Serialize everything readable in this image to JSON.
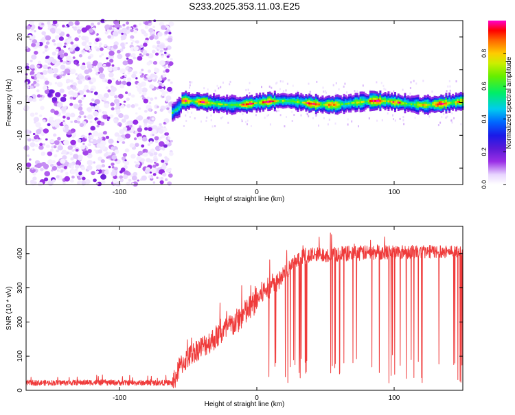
{
  "figure_title": "S233.2025.353.11.03.E25",
  "chart_data": [
    {
      "type": "heatmap",
      "title": "",
      "xlabel": "Height of straight line (km)",
      "ylabel": "Frequency (Hz)",
      "xlim": [
        -168,
        150
      ],
      "ylim": [
        -25,
        25
      ],
      "xticks": [
        -100,
        0,
        100
      ],
      "yticks": [
        -20,
        -10,
        0,
        10,
        20
      ],
      "colorbar": {
        "label": "Normalized spectral amplitude",
        "range": [
          0,
          1
        ],
        "ticks": [
          "0.0",
          "0.2",
          "0.4",
          "0.6",
          "0.8"
        ],
        "tick_values": [
          0.0,
          0.2,
          0.4,
          0.6,
          0.8
        ],
        "stops": [
          {
            "v": 0.0,
            "color": "#ffffff"
          },
          {
            "v": 0.06,
            "color": "#e8d6ff"
          },
          {
            "v": 0.14,
            "color": "#9a2ee6"
          },
          {
            "v": 0.22,
            "color": "#5a1ad8"
          },
          {
            "v": 0.3,
            "color": "#1a1ae8"
          },
          {
            "v": 0.38,
            "color": "#0066ff"
          },
          {
            "v": 0.46,
            "color": "#00ccee"
          },
          {
            "v": 0.56,
            "color": "#00ee66"
          },
          {
            "v": 0.66,
            "color": "#66ee00"
          },
          {
            "v": 0.74,
            "color": "#ccee00"
          },
          {
            "v": 0.8,
            "color": "#ffcc00"
          },
          {
            "v": 0.88,
            "color": "#ff6600"
          },
          {
            "v": 0.94,
            "color": "#ff0000"
          },
          {
            "v": 1.0,
            "color": "#ff00cc"
          }
        ]
      },
      "regions": [
        {
          "name": "noise",
          "x_range": [
            -168,
            -62
          ],
          "freq_range": [
            -25,
            25
          ],
          "amplitude_range": [
            0.0,
            0.2
          ]
        },
        {
          "name": "signal-onset",
          "x_range": [
            -62,
            -55
          ],
          "center_freq": -3,
          "peak_amplitude": 0.5
        },
        {
          "name": "signal-band",
          "x_range": [
            -55,
            150
          ],
          "center_freq": 0,
          "band_halfwidth_hz": 2.5,
          "peak_amplitude": 1.0
        }
      ]
    },
    {
      "type": "line",
      "title": "",
      "xlabel": "Height of straight line (km)",
      "ylabel": "SNR (10 * v/v)",
      "xlim": [
        -168,
        150
      ],
      "ylim": [
        0,
        480
      ],
      "xticks": [
        -100,
        0,
        100
      ],
      "yticks": [
        0,
        100,
        200,
        300,
        400
      ],
      "color": "#ef3b3b",
      "trend": {
        "x": [
          -168,
          -150,
          -120,
          -90,
          -70,
          -61,
          -55,
          -45,
          -35,
          -25,
          -15,
          -5,
          5,
          15,
          25,
          35,
          50,
          75,
          100,
          125,
          150
        ],
        "y": [
          22,
          22,
          23,
          22,
          22,
          22,
          75,
          115,
          140,
          170,
          200,
          240,
          290,
          315,
          365,
          392,
          398,
          402,
          405,
          406,
          406
        ]
      },
      "noise_spread": {
        "x": [
          -168,
          -62,
          -61,
          -5,
          20,
          150
        ],
        "y": [
          8,
          8,
          30,
          40,
          25,
          18
        ]
      },
      "dropout_region": {
        "x_range": [
          8,
          150
        ],
        "min_value": 20
      }
    }
  ]
}
